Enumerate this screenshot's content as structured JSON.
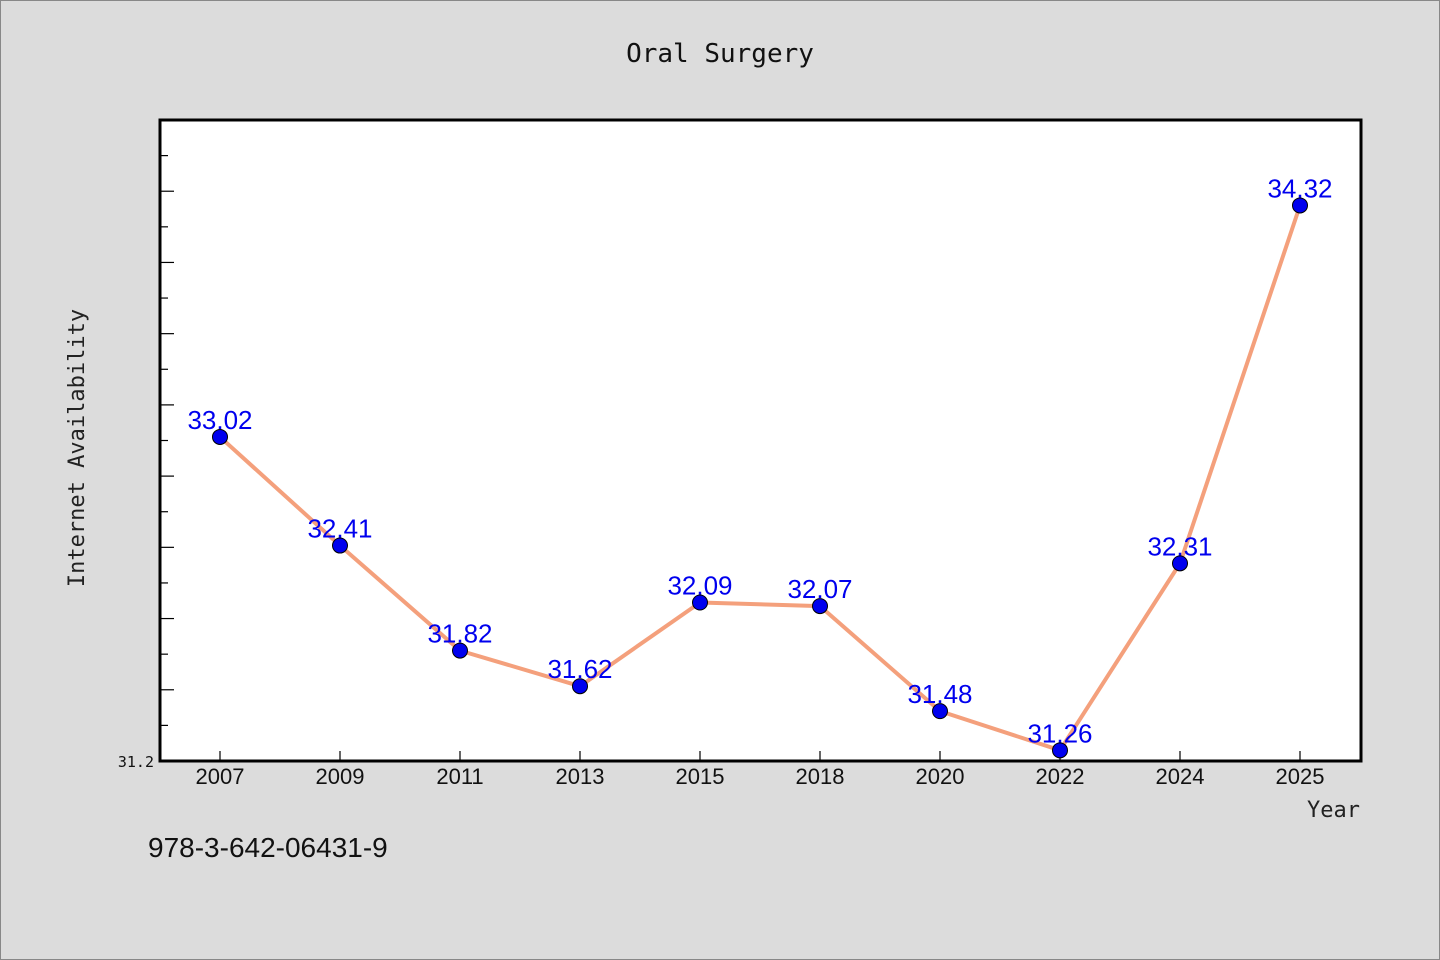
{
  "isbn": "978-3-642-06431-9",
  "chart_data": {
    "type": "line",
    "title": "Oral Surgery",
    "xlabel": "Year",
    "ylabel": "Internet Availability",
    "categories": [
      "2007",
      "2009",
      "2011",
      "2013",
      "2015",
      "2018",
      "2020",
      "2022",
      "2024",
      "2025"
    ],
    "series": [
      {
        "values": [
          33.02,
          32.41,
          31.82,
          31.62,
          32.09,
          32.07,
          31.48,
          31.26,
          32.31,
          34.32
        ],
        "data_labels": [
          "33.02",
          "32.41",
          "31.82",
          "31.62",
          "32.09",
          "32.07",
          "31.48",
          "31.26",
          "32.31",
          "34.32"
        ]
      }
    ],
    "ylim": [
      31.2,
      34.8
    ],
    "yticks_labeled": [
      "31.2"
    ],
    "grid": false,
    "colors": {
      "line": "#f4a07c",
      "marker": "#0000ee",
      "marker_edge": "#000000",
      "data_label": "#0000ee",
      "plot_bg": "#ffffff",
      "figure_bg": "#dcdcdc"
    }
  }
}
